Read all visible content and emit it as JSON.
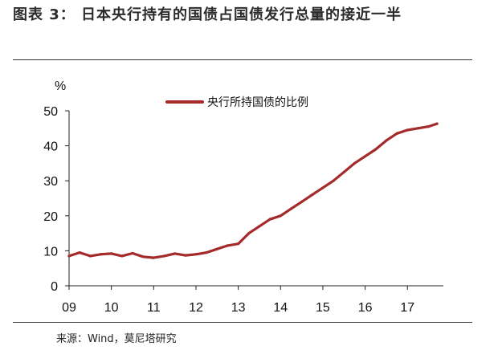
{
  "header": {
    "title": "图表 3： 日本央行持有的国债占国债发行总量的接近一半"
  },
  "footer": {
    "source": "来源：Wind，莫尼塔研究"
  },
  "colors": {
    "series": "#a52a2a",
    "rule": "#333333"
  },
  "chart_data": {
    "type": "line",
    "ylabel": "%",
    "ylim": [
      0,
      50
    ],
    "yticks": [
      "0",
      "10",
      "20",
      "30",
      "40",
      "50"
    ],
    "xticks": [
      "09",
      "10",
      "11",
      "12",
      "13",
      "14",
      "15",
      "16",
      "17"
    ],
    "legend": {
      "position": "top-right"
    },
    "grid": false,
    "series": [
      {
        "name": "央行所持国债的比例",
        "x": [
          2009.0,
          2009.25,
          2009.5,
          2009.75,
          2010.0,
          2010.25,
          2010.5,
          2010.75,
          2011.0,
          2011.25,
          2011.5,
          2011.75,
          2012.0,
          2012.25,
          2012.5,
          2012.75,
          2013.0,
          2013.25,
          2013.5,
          2013.75,
          2014.0,
          2014.25,
          2014.5,
          2014.75,
          2015.0,
          2015.25,
          2015.5,
          2015.75,
          2016.0,
          2016.25,
          2016.5,
          2016.75,
          2017.0,
          2017.25,
          2017.5,
          2017.7
        ],
        "values": [
          8.5,
          9.5,
          8.5,
          9.0,
          9.2,
          8.5,
          9.3,
          8.3,
          8.0,
          8.5,
          9.2,
          8.7,
          9.0,
          9.5,
          10.5,
          11.5,
          12.0,
          15.0,
          17.0,
          19.0,
          20.0,
          22.0,
          24.0,
          26.0,
          28.0,
          30.0,
          32.5,
          35.0,
          37.0,
          39.0,
          41.5,
          43.5,
          44.5,
          45.0,
          45.5,
          46.3
        ]
      }
    ]
  }
}
